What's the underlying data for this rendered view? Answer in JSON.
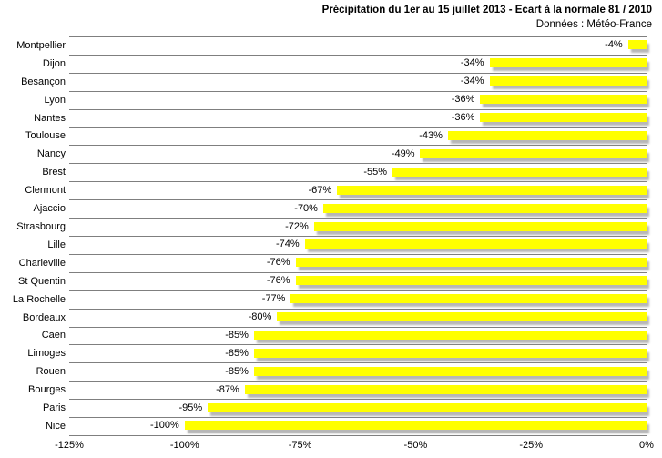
{
  "title": "Précipitation du 1er au 15 juillet 2013 - Ecart à la normale 81 / 2010",
  "subtitle": "Données : Météo-France",
  "chart_data": {
    "type": "bar",
    "orientation": "horizontal",
    "title": "Précipitation du 1er au 15 juillet 2013 - Ecart à la normale 81 / 2010",
    "subtitle": "Données : Météo-France",
    "categories": [
      "Montpellier",
      "Dijon",
      "Besançon",
      "Lyon",
      "Nantes",
      "Toulouse",
      "Nancy",
      "Brest",
      "Clermont",
      "Ajaccio",
      "Strasbourg",
      "Lille",
      "Charleville",
      "St Quentin",
      "La Rochelle",
      "Bordeaux",
      "Caen",
      "Limoges",
      "Rouen",
      "Bourges",
      "Paris",
      "Nice"
    ],
    "values": [
      -4,
      -34,
      -34,
      -36,
      -36,
      -43,
      -49,
      -55,
      -67,
      -70,
      -72,
      -74,
      -76,
      -76,
      -77,
      -80,
      -85,
      -85,
      -85,
      -87,
      -95,
      -100
    ],
    "labels": [
      "-4%",
      "-34%",
      "-34%",
      "-36%",
      "-36%",
      "-43%",
      "-49%",
      "-55%",
      "-67%",
      "-70%",
      "-72%",
      "-74%",
      "-76%",
      "-76%",
      "-77%",
      "-80%",
      "-85%",
      "-85%",
      "-85%",
      "-87%",
      "-95%",
      "-100%"
    ],
    "xlabel": "",
    "ylabel": "",
    "xlim": [
      -125,
      0
    ],
    "x_ticks": [
      "-125%",
      "-100%",
      "-75%",
      "-50%",
      "-25%",
      "0%"
    ],
    "bar_color": "#FFFF00",
    "bar_shadow_color": "#b7b7b7",
    "gridline_color": "#7f7f7f",
    "grid": "category-lines-only",
    "legend_position": "none",
    "data_labels": "outside-end"
  }
}
